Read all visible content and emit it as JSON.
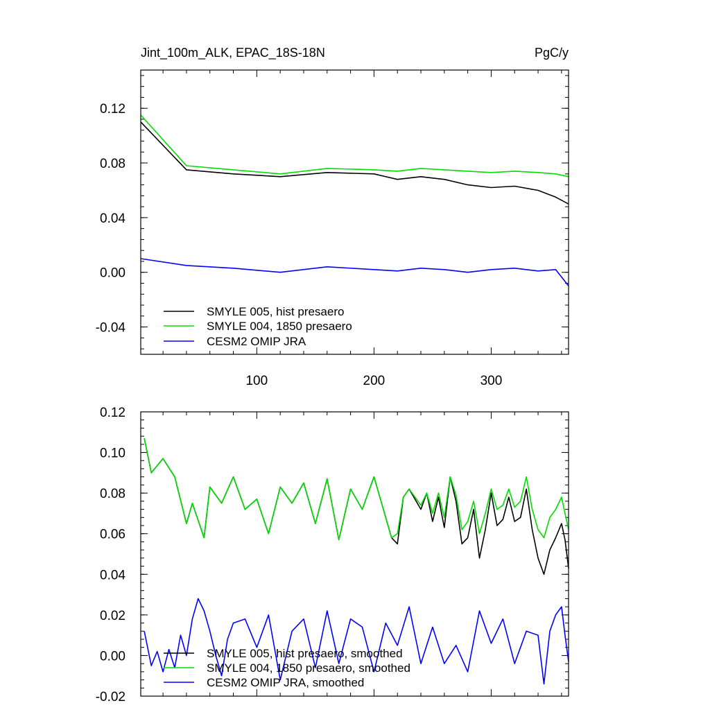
{
  "chart_data": [
    {
      "type": "line",
      "title_left": "Jint_100m_ALK, EPAC_18S-18N",
      "title_right": "PgC/y",
      "xlim": [
        1,
        366
      ],
      "ylim": [
        -0.06,
        0.148
      ],
      "x_ticks": [
        100,
        200,
        300
      ],
      "y_ticks": [
        -0.04,
        0.0,
        0.04,
        0.08,
        0.12
      ],
      "y_tick_labels": [
        "-0.04",
        "0.00",
        "0.04",
        "0.08",
        "0.12"
      ],
      "legend_position": "bottom-left",
      "series": [
        {
          "name": "SMYLE 005, hist presaero",
          "color": "#000000",
          "x": [
            1,
            40,
            80,
            120,
            160,
            200,
            220,
            240,
            260,
            280,
            300,
            320,
            340,
            355,
            366
          ],
          "values": [
            0.11,
            0.075,
            0.072,
            0.07,
            0.073,
            0.072,
            0.068,
            0.07,
            0.068,
            0.064,
            0.062,
            0.063,
            0.06,
            0.055,
            0.05
          ]
        },
        {
          "name": "SMYLE 004, 1850 presaero",
          "color": "#00dd00",
          "x": [
            1,
            40,
            80,
            120,
            160,
            200,
            220,
            240,
            260,
            280,
            300,
            320,
            340,
            355,
            366
          ],
          "values": [
            0.115,
            0.078,
            0.075,
            0.072,
            0.076,
            0.075,
            0.074,
            0.076,
            0.075,
            0.074,
            0.073,
            0.074,
            0.073,
            0.072,
            0.07
          ]
        },
        {
          "name": "CESM2 OMIP JRA",
          "color": "#0000ff",
          "x": [
            1,
            40,
            80,
            120,
            160,
            200,
            220,
            240,
            260,
            280,
            300,
            320,
            340,
            355,
            366
          ],
          "values": [
            0.01,
            0.005,
            0.003,
            0.0,
            0.004,
            0.002,
            0.001,
            0.003,
            0.002,
            0.0,
            0.002,
            0.003,
            0.001,
            0.002,
            -0.01
          ]
        }
      ]
    },
    {
      "type": "line",
      "xlim": [
        1,
        366
      ],
      "ylim": [
        -0.02,
        0.12
      ],
      "x_ticks": [
        100,
        200,
        300
      ],
      "y_ticks": [
        -0.02,
        0.0,
        0.02,
        0.04,
        0.06,
        0.08,
        0.1,
        0.12
      ],
      "y_tick_labels": [
        "-0.02",
        "0.00",
        "0.02",
        "0.04",
        "0.06",
        "0.08",
        "0.10",
        "0.12"
      ],
      "legend_position": "bottom-left",
      "series": [
        {
          "name": "SMYLE 005, hist presaero, smoothed",
          "color": "#000000",
          "x": [
            4,
            10,
            20,
            30,
            40,
            45,
            55,
            60,
            70,
            80,
            90,
            100,
            110,
            120,
            130,
            140,
            150,
            160,
            170,
            180,
            190,
            200,
            210,
            215,
            220,
            225,
            230,
            240,
            245,
            250,
            255,
            260,
            265,
            270,
            275,
            280,
            285,
            290,
            295,
            300,
            305,
            310,
            315,
            320,
            325,
            330,
            335,
            340,
            345,
            350,
            355,
            360,
            363,
            366
          ],
          "values": [
            0.107,
            0.09,
            0.097,
            0.088,
            0.065,
            0.075,
            0.058,
            0.083,
            0.075,
            0.088,
            0.072,
            0.077,
            0.06,
            0.083,
            0.075,
            0.085,
            0.065,
            0.087,
            0.057,
            0.082,
            0.072,
            0.088,
            0.068,
            0.058,
            0.055,
            0.078,
            0.082,
            0.072,
            0.08,
            0.066,
            0.078,
            0.063,
            0.088,
            0.076,
            0.055,
            0.058,
            0.072,
            0.048,
            0.062,
            0.08,
            0.064,
            0.067,
            0.078,
            0.066,
            0.068,
            0.082,
            0.062,
            0.048,
            0.04,
            0.052,
            0.058,
            0.065,
            0.057,
            0.043
          ]
        },
        {
          "name": "SMYLE 004, 1850 presaero, smoothed",
          "color": "#00dd00",
          "x": [
            4,
            10,
            20,
            30,
            40,
            45,
            55,
            60,
            70,
            80,
            90,
            100,
            110,
            120,
            130,
            140,
            150,
            160,
            170,
            180,
            190,
            200,
            210,
            215,
            220,
            225,
            230,
            240,
            245,
            250,
            255,
            260,
            265,
            270,
            275,
            280,
            285,
            290,
            295,
            300,
            305,
            310,
            315,
            320,
            325,
            330,
            335,
            340,
            345,
            350,
            355,
            360,
            363,
            366
          ],
          "values": [
            0.107,
            0.09,
            0.097,
            0.088,
            0.065,
            0.075,
            0.058,
            0.083,
            0.075,
            0.088,
            0.072,
            0.077,
            0.06,
            0.083,
            0.075,
            0.085,
            0.065,
            0.087,
            0.057,
            0.082,
            0.072,
            0.088,
            0.068,
            0.058,
            0.06,
            0.078,
            0.082,
            0.074,
            0.08,
            0.07,
            0.08,
            0.068,
            0.088,
            0.079,
            0.062,
            0.066,
            0.076,
            0.06,
            0.07,
            0.082,
            0.072,
            0.074,
            0.082,
            0.073,
            0.076,
            0.088,
            0.072,
            0.062,
            0.058,
            0.068,
            0.072,
            0.078,
            0.07,
            0.062
          ]
        },
        {
          "name": "CESM2 OMIP JRA, smoothed",
          "color": "#0000ff",
          "x": [
            4,
            10,
            15,
            20,
            25,
            30,
            35,
            40,
            45,
            50,
            55,
            60,
            65,
            70,
            75,
            80,
            90,
            100,
            110,
            120,
            130,
            140,
            150,
            160,
            170,
            180,
            190,
            200,
            210,
            220,
            230,
            240,
            250,
            260,
            270,
            280,
            290,
            300,
            310,
            320,
            330,
            340,
            345,
            350,
            355,
            360,
            363,
            366
          ],
          "values": [
            0.012,
            -0.005,
            0.002,
            -0.008,
            0.003,
            -0.006,
            0.01,
            0.0,
            0.018,
            0.028,
            0.022,
            0.012,
            0.0,
            -0.01,
            0.008,
            0.016,
            0.018,
            0.004,
            0.02,
            -0.012,
            0.012,
            0.018,
            -0.006,
            0.022,
            -0.004,
            0.018,
            0.014,
            -0.008,
            0.016,
            0.005,
            0.024,
            -0.004,
            0.014,
            -0.004,
            0.005,
            -0.008,
            0.022,
            0.006,
            0.018,
            -0.004,
            0.012,
            0.01,
            -0.014,
            0.012,
            0.02,
            0.024,
            0.01,
            -0.003
          ]
        }
      ]
    }
  ]
}
